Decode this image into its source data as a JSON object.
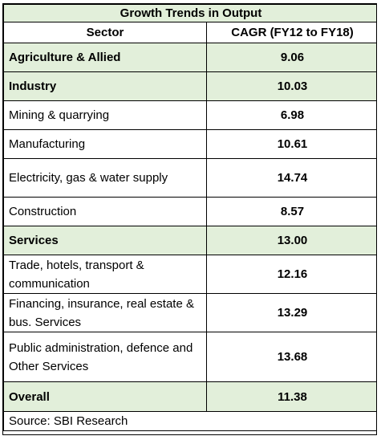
{
  "table": {
    "title": "Growth Trends in Output",
    "columns": [
      "Sector",
      "CAGR (FY12 to FY18)"
    ],
    "rows": [
      {
        "sector": "Agriculture & Allied",
        "value": "9.06"
      },
      {
        "sector": "Industry",
        "value": "10.03"
      },
      {
        "sector": "Mining & quarrying",
        "value": "6.98"
      },
      {
        "sector": "Manufacturing",
        "value": "10.61"
      },
      {
        "sector": "Electricity, gas & water supply",
        "value": "14.74"
      },
      {
        "sector": "Construction",
        "value": "8.57"
      },
      {
        "sector": "Services",
        "value": "13.00"
      },
      {
        "sector": "Trade, hotels, transport & communication",
        "value": "12.16"
      },
      {
        "sector": "Financing, insurance, real estate & bus. Services",
        "value": "13.29"
      },
      {
        "sector": "Public administration, defence and Other Services",
        "value": "13.68"
      },
      {
        "sector": "Overall",
        "value": "11.38"
      }
    ],
    "source": "Source: SBI Research"
  },
  "colors": {
    "highlight": "#e2efda",
    "border": "#000000"
  }
}
